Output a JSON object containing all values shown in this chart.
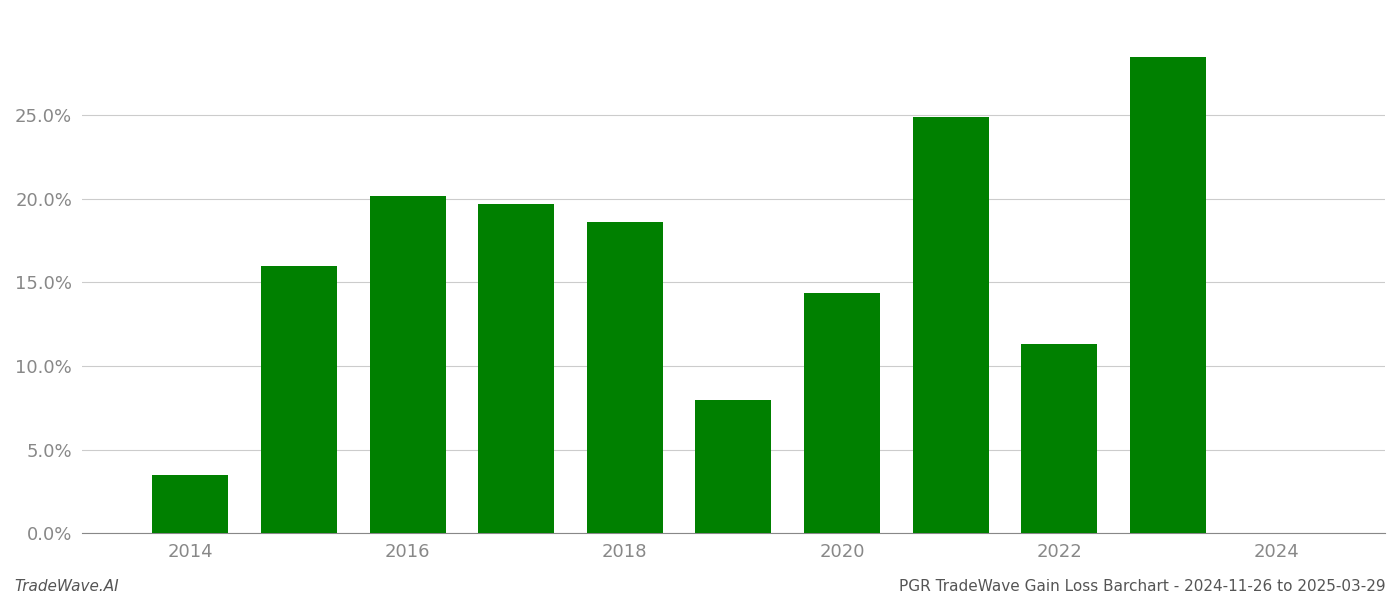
{
  "years": [
    2014,
    2015,
    2016,
    2017,
    2018,
    2019,
    2020,
    2021,
    2022,
    2023
  ],
  "values": [
    0.035,
    0.16,
    0.202,
    0.197,
    0.186,
    0.08,
    0.144,
    0.249,
    0.113,
    0.285
  ],
  "bar_color": "#008000",
  "background_color": "#ffffff",
  "grid_color": "#cccccc",
  "ylim": [
    0,
    0.31
  ],
  "yticks": [
    0.0,
    0.05,
    0.1,
    0.15,
    0.2,
    0.25
  ],
  "xticks": [
    2014,
    2016,
    2018,
    2020,
    2022,
    2024
  ],
  "xlim": [
    2013.0,
    2025.0
  ],
  "footer_left": "TradeWave.AI",
  "footer_right": "PGR TradeWave Gain Loss Barchart - 2024-11-26 to 2025-03-29",
  "footer_fontsize": 11,
  "tick_fontsize": 13,
  "axis_color": "#888888"
}
